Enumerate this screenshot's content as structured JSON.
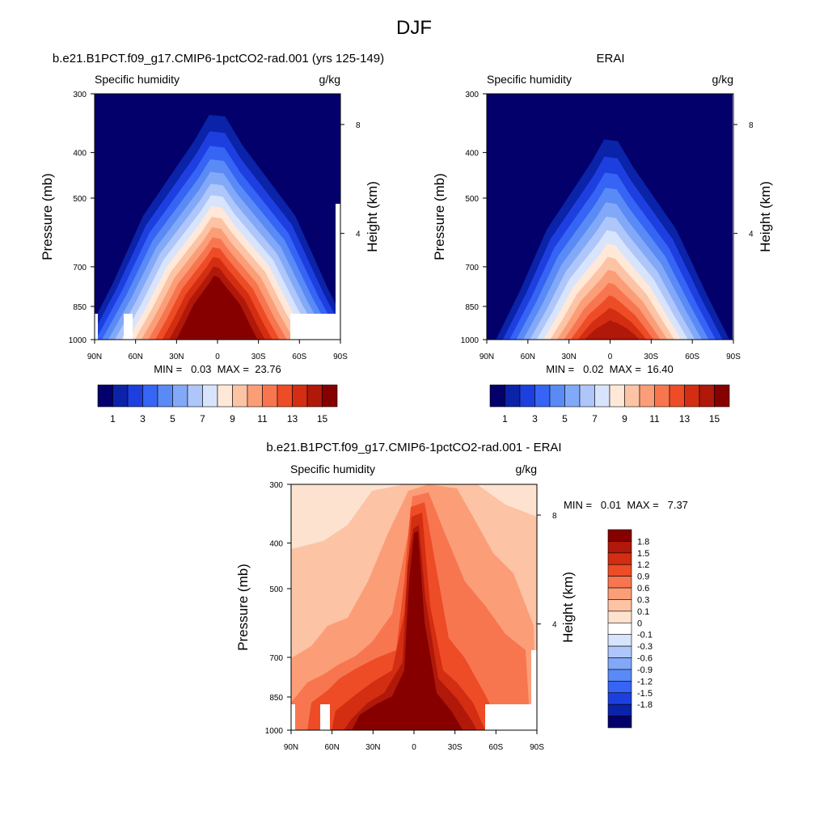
{
  "figure": {
    "title": "DJF"
  },
  "chart_data": [
    {
      "type": "heatmap",
      "title": "b.e21.B1PCT.f09_g17.CMIP6-1pctCO2-rad.001 (yrs 125-149)",
      "left_label": "Specific humidity",
      "right_label": "g/kg",
      "ylabel": "Pressure (mb)",
      "ylabel_right": "Height (km)",
      "x_ticks": [
        "90N",
        "60N",
        "30N",
        "0",
        "30S",
        "60S",
        "90S"
      ],
      "y_ticks": [
        300,
        400,
        500,
        700,
        850,
        1000
      ],
      "y_ticks_right": [
        8,
        4
      ],
      "ylim": [
        1000,
        300
      ],
      "xlim": [
        90,
        -90
      ],
      "min_max_text": "MIN =   0.03  MAX =  23.76",
      "min": 0.03,
      "max": 23.76,
      "peak_value": 23.76,
      "edge_value": 0.03,
      "colorbar": {
        "orientation": "horizontal",
        "labels": [
          "1",
          "3",
          "5",
          "7",
          "9",
          "11",
          "13",
          "15"
        ],
        "colors": [
          "#04006b",
          "#0a23a8",
          "#1e3fe0",
          "#3664f5",
          "#5a8af5",
          "#82a9f8",
          "#aec6fa",
          "#d8e4fc",
          "#ffe8d8",
          "#fcc3a5",
          "#fb9e78",
          "#f77650",
          "#ed4c27",
          "#d32d12",
          "#b0180a",
          "#860000"
        ]
      }
    },
    {
      "type": "heatmap",
      "title": "ERAI",
      "left_label": "Specific humidity",
      "right_label": "g/kg",
      "ylabel": "Pressure (mb)",
      "ylabel_right": "Height (km)",
      "x_ticks": [
        "90N",
        "60N",
        "30N",
        "0",
        "30S",
        "60S",
        "90S"
      ],
      "y_ticks": [
        300,
        400,
        500,
        700,
        850,
        1000
      ],
      "y_ticks_right": [
        8,
        4
      ],
      "ylim": [
        1000,
        300
      ],
      "xlim": [
        90,
        -90
      ],
      "min_max_text": "MIN =   0.02  MAX =  16.40",
      "min": 0.02,
      "max": 16.4,
      "peak_value": 16.4,
      "edge_value": 0.02,
      "colorbar": {
        "orientation": "horizontal",
        "labels": [
          "1",
          "3",
          "5",
          "7",
          "9",
          "11",
          "13",
          "15"
        ],
        "colors": [
          "#04006b",
          "#0a23a8",
          "#1e3fe0",
          "#3664f5",
          "#5a8af5",
          "#82a9f8",
          "#aec6fa",
          "#d8e4fc",
          "#ffe8d8",
          "#fcc3a5",
          "#fb9e78",
          "#f77650",
          "#ed4c27",
          "#d32d12",
          "#b0180a",
          "#860000"
        ]
      }
    },
    {
      "type": "heatmap",
      "title": "b.e21.B1PCT.f09_g17.CMIP6-1pctCO2-rad.001 - ERAI",
      "left_label": "Specific humidity",
      "right_label": "g/kg",
      "ylabel": "Pressure (mb)",
      "ylabel_right": "Height (km)",
      "x_ticks": [
        "90N",
        "60N",
        "30N",
        "0",
        "30S",
        "60S",
        "90S"
      ],
      "y_ticks": [
        300,
        400,
        500,
        700,
        850,
        1000
      ],
      "y_ticks_right": [
        8,
        4
      ],
      "ylim": [
        1000,
        300
      ],
      "xlim": [
        90,
        -90
      ],
      "min_max_text": "MIN =   0.01  MAX =   7.37",
      "min": 0.01,
      "max": 7.37,
      "colorbar": {
        "orientation": "vertical",
        "labels": [
          "1.8",
          "1.5",
          "1.2",
          "0.9",
          "0.6",
          "0.3",
          "0.1",
          "0",
          "-0.1",
          "-0.3",
          "-0.6",
          "-0.9",
          "-1.2",
          "-1.5",
          "-1.8"
        ],
        "colors": [
          "#860000",
          "#b0180a",
          "#d32d12",
          "#ed4c27",
          "#f77650",
          "#fb9e78",
          "#fcc3a5",
          "#fde3cf",
          "#ffffff",
          "#d8e4fc",
          "#aec6fa",
          "#82a9f8",
          "#5a8af5",
          "#3664f5",
          "#1e3fe0",
          "#0a23a8",
          "#04006b"
        ]
      }
    }
  ]
}
